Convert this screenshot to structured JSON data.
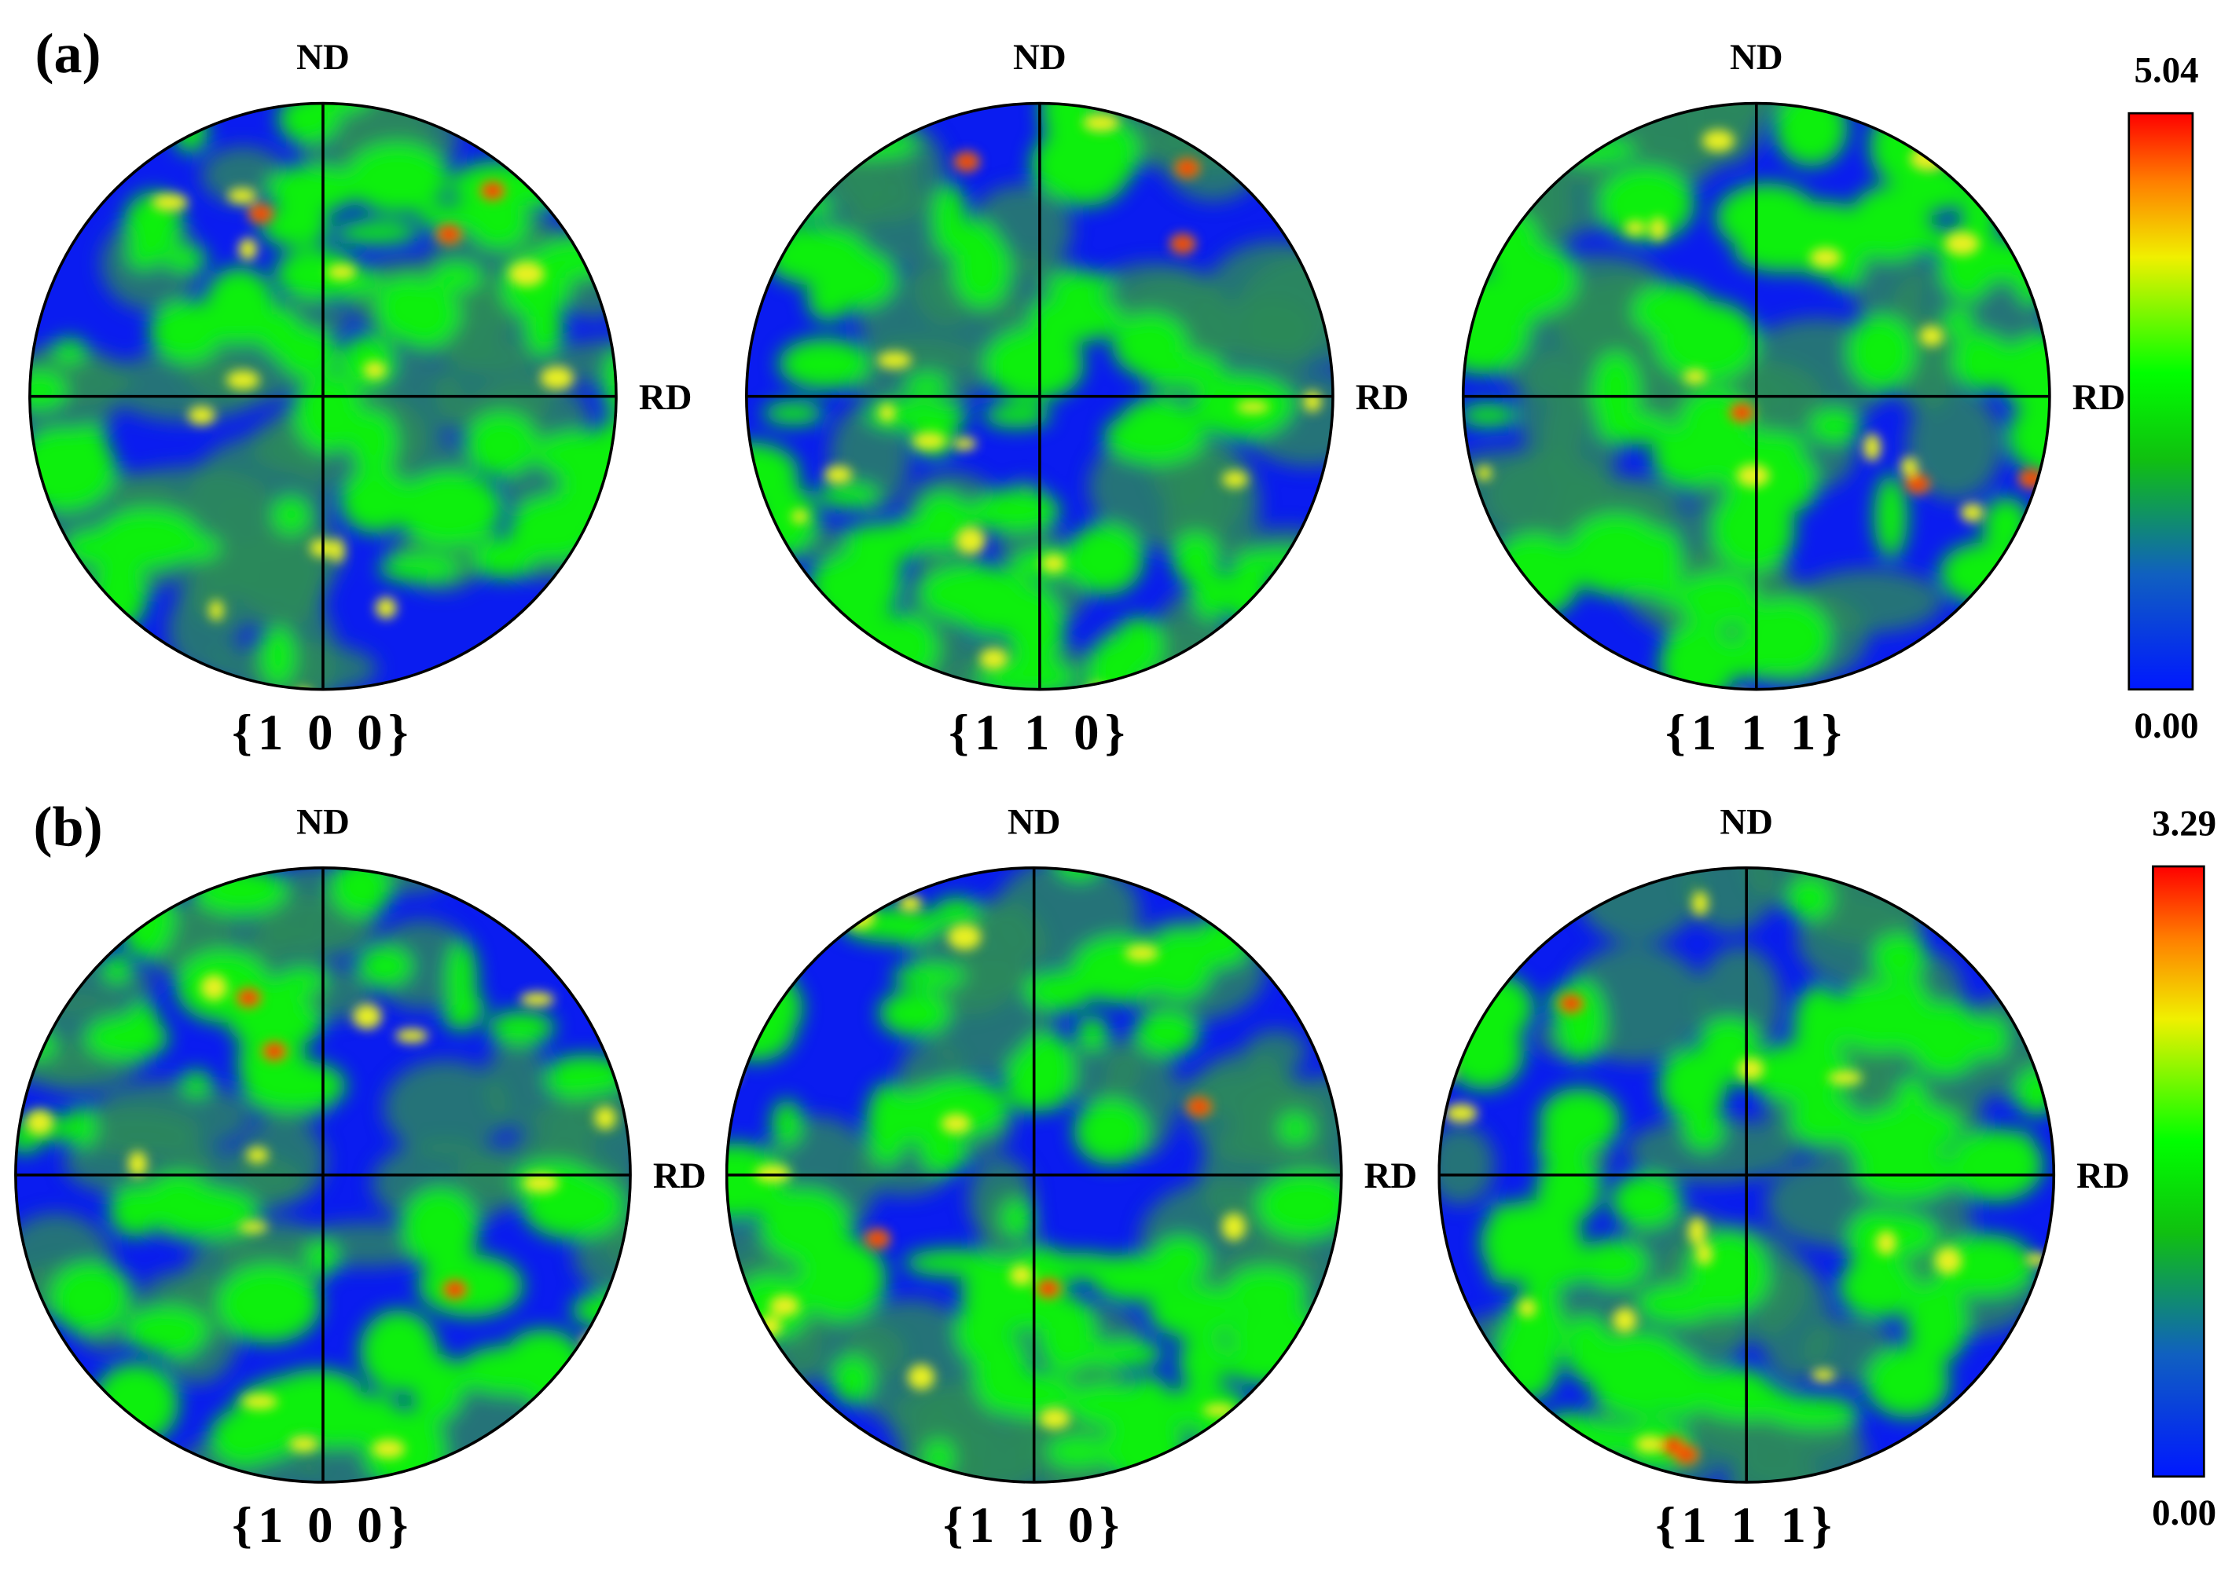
{
  "panels": [
    {
      "label": "(a)",
      "colorbar": {
        "max": "5.04",
        "min": "0.00"
      },
      "figures": [
        {
          "top": "ND",
          "right": "RD",
          "plane": "{1 0 0}"
        },
        {
          "top": "ND",
          "right": "RD",
          "plane": "{1 1 0}"
        },
        {
          "top": "ND",
          "right": "RD",
          "plane": "{1 1 1}"
        }
      ]
    },
    {
      "label": "(b)",
      "colorbar": {
        "max": "3.29",
        "min": "0.00"
      },
      "figures": [
        {
          "top": "ND",
          "right": "RD",
          "plane": "{1 0 0}"
        },
        {
          "top": "ND",
          "right": "RD",
          "plane": "{1 1 0}"
        },
        {
          "top": "ND",
          "right": "RD",
          "plane": "{1 1 1}"
        }
      ]
    }
  ]
}
